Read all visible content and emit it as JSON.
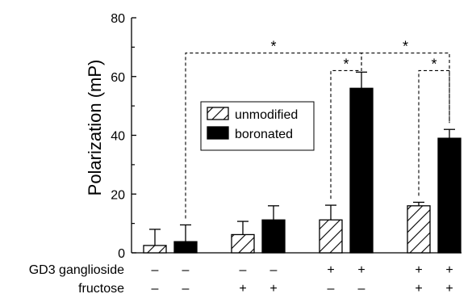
{
  "chart_data": {
    "type": "bar",
    "title": "",
    "xlabel": "",
    "ylabel": "Polarization (mP)",
    "ylim": [
      0,
      80
    ],
    "yticks": [
      0,
      20,
      40,
      60,
      80
    ],
    "ytick_labels": [
      "0",
      "20",
      "40",
      "60",
      "80"
    ],
    "legend_position": "center",
    "groups": [
      {
        "ganglioside": "–",
        "fructose": "–",
        "bars": [
          {
            "series": "unmodified",
            "value": 2.5,
            "error": 5.5
          },
          {
            "series": "boronated",
            "value": 3.8,
            "error": 5.7
          }
        ]
      },
      {
        "ganglioside": "–",
        "fructose": "+",
        "bars": [
          {
            "series": "unmodified",
            "value": 6.2,
            "error": 4.5
          },
          {
            "series": "boronated",
            "value": 11.2,
            "error": 4.8
          }
        ]
      },
      {
        "ganglioside": "+",
        "fructose": "–",
        "bars": [
          {
            "series": "unmodified",
            "value": 11.2,
            "error": 5.0
          },
          {
            "series": "boronated",
            "value": 56.0,
            "error": 5.5
          }
        ]
      },
      {
        "ganglioside": "+",
        "fructose": "+",
        "bars": [
          {
            "series": "unmodified",
            "value": 16.0,
            "error": 1.2
          },
          {
            "series": "boronated",
            "value": 39.0,
            "error": 3.0
          }
        ]
      }
    ],
    "series": [
      {
        "name": "unmodified",
        "pattern": "hatched",
        "color": "#ffffff"
      },
      {
        "name": "boronated",
        "pattern": "solid",
        "color": "#000000"
      }
    ],
    "row_labels": {
      "ganglioside": "GD3 ganglioside",
      "fructose": "fructose"
    },
    "significance_marker": "*",
    "significance_brackets": [
      {
        "from": [
          0,
          1
        ],
        "to": [
          2,
          1
        ],
        "level": 68,
        "label": "*"
      },
      {
        "from": [
          2,
          0
        ],
        "to": [
          2,
          1
        ],
        "level": 62,
        "label": "*"
      },
      {
        "from": [
          2,
          1
        ],
        "to": [
          3,
          1
        ],
        "level": 68,
        "label": "*"
      },
      {
        "from": [
          3,
          0
        ],
        "to": [
          3,
          1
        ],
        "level": 62,
        "label": "*"
      }
    ]
  }
}
